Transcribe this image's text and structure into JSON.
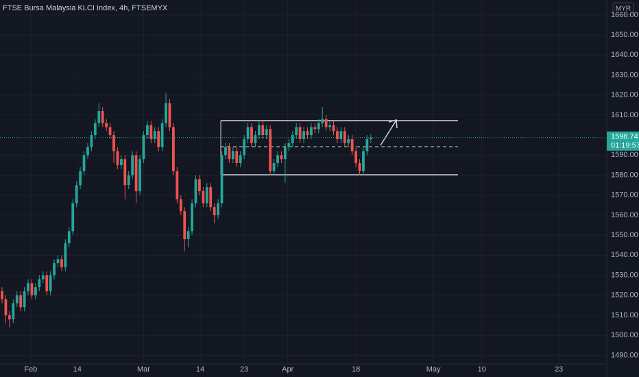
{
  "chart_data": {
    "type": "candlestick",
    "title": "FTSE Bursa Malaysia KLCI Index, 4h, FTSEMYX",
    "currency": "MYR",
    "up_color": "#26a69a",
    "down_color": "#ef5350",
    "open": [
      1522,
      1518,
      1510,
      1508,
      1516,
      1520,
      1514,
      1522,
      1526,
      1520,
      1524,
      1528,
      1530,
      1522,
      1530,
      1536,
      1538,
      1534,
      1546,
      1552,
      1566,
      1575,
      1582,
      1590,
      1594,
      1600,
      1606,
      1612,
      1606,
      1604,
      1600,
      1592,
      1585,
      1588,
      1575,
      1580,
      1590,
      1572,
      1588,
      1600,
      1605,
      1598,
      1602,
      1594,
      1606,
      1616,
      1604,
      1582,
      1568,
      1562,
      1548,
      1552,
      1566,
      1578,
      1572,
      1566,
      1574,
      1564,
      1560,
      1566,
      1590,
      1594,
      1588,
      1592,
      1586,
      1590,
      1598,
      1604,
      1596,
      1600,
      1605,
      1600,
      1603,
      1582,
      1586,
      1590,
      1588,
      1594,
      1596,
      1600,
      1604,
      1598,
      1602,
      1600,
      1604,
      1603,
      1606,
      1608,
      1604,
      1605,
      1602,
      1598,
      1602,
      1596,
      1598,
      1592,
      1586,
      1582,
      1592,
      1598
    ],
    "high": [
      1524,
      1520,
      1512,
      1518,
      1522,
      1522,
      1524,
      1528,
      1528,
      1526,
      1530,
      1532,
      1532,
      1532,
      1538,
      1540,
      1540,
      1548,
      1554,
      1568,
      1577,
      1584,
      1592,
      1596,
      1602,
      1608,
      1616,
      1614,
      1608,
      1606,
      1602,
      1594,
      1590,
      1590,
      1582,
      1592,
      1592,
      1590,
      1602,
      1607,
      1607,
      1604,
      1604,
      1608,
      1621,
      1618,
      1606,
      1584,
      1570,
      1564,
      1554,
      1568,
      1580,
      1580,
      1574,
      1576,
      1576,
      1566,
      1568,
      1592,
      1596,
      1596,
      1594,
      1594,
      1592,
      1600,
      1606,
      1606,
      1602,
      1607,
      1607,
      1605,
      1605,
      1588,
      1592,
      1592,
      1596,
      1598,
      1602,
      1606,
      1606,
      1604,
      1604,
      1606,
      1606,
      1608,
      1614,
      1610,
      1607,
      1607,
      1604,
      1604,
      1604,
      1600,
      1600,
      1594,
      1588,
      1594,
      1600,
      1600.5
    ],
    "low": [
      1516,
      1506,
      1504,
      1506,
      1514,
      1512,
      1512,
      1520,
      1518,
      1518,
      1522,
      1526,
      1520,
      1520,
      1528,
      1534,
      1532,
      1532,
      1544,
      1550,
      1564,
      1573,
      1580,
      1588,
      1592,
      1598,
      1604,
      1604,
      1602,
      1598,
      1586,
      1583,
      1583,
      1568,
      1573,
      1578,
      1566,
      1570,
      1586,
      1598,
      1596,
      1596,
      1592,
      1592,
      1604,
      1602,
      1580,
      1566,
      1560,
      1542,
      1544,
      1550,
      1564,
      1570,
      1564,
      1564,
      1562,
      1556,
      1558,
      1564,
      1588,
      1586,
      1586,
      1584,
      1584,
      1588,
      1596,
      1594,
      1594,
      1598,
      1598,
      1598,
      1580,
      1580,
      1584,
      1586,
      1576,
      1592,
      1594,
      1598,
      1596,
      1596,
      1598,
      1598,
      1601,
      1601,
      1604,
      1602,
      1602,
      1600,
      1596,
      1596,
      1594,
      1594,
      1590,
      1584,
      1580,
      1580,
      1590,
      1596
    ],
    "close": [
      1518,
      1510,
      1508,
      1516,
      1520,
      1514,
      1522,
      1526,
      1520,
      1524,
      1528,
      1530,
      1522,
      1530,
      1536,
      1538,
      1534,
      1546,
      1552,
      1566,
      1575,
      1582,
      1590,
      1594,
      1600,
      1606,
      1612,
      1606,
      1604,
      1600,
      1592,
      1585,
      1588,
      1575,
      1580,
      1590,
      1572,
      1588,
      1600,
      1605,
      1598,
      1602,
      1594,
      1606,
      1616,
      1604,
      1582,
      1568,
      1562,
      1548,
      1552,
      1566,
      1578,
      1572,
      1566,
      1574,
      1564,
      1560,
      1566,
      1590,
      1594,
      1588,
      1592,
      1586,
      1590,
      1598,
      1604,
      1596,
      1600,
      1605,
      1600,
      1603,
      1582,
      1586,
      1590,
      1588,
      1594,
      1596,
      1600,
      1604,
      1598,
      1602,
      1600,
      1604,
      1603,
      1606,
      1608,
      1604,
      1605,
      1602,
      1598,
      1602,
      1596,
      1598,
      1592,
      1586,
      1582,
      1592,
      1598,
      1598.74
    ],
    "last_price": {
      "value": 1598.74,
      "label": "1598.74"
    },
    "countdown": "01:19:57",
    "xlim": [
      -0.55,
      161.8
    ],
    "xticks": [
      {
        "value": 7.7,
        "label": "Feb"
      },
      {
        "value": 20.2,
        "label": "14"
      },
      {
        "value": 38,
        "label": "Mar"
      },
      {
        "value": 53.2,
        "label": "14"
      },
      {
        "value": 65,
        "label": "23"
      },
      {
        "value": 76.7,
        "label": "Apr"
      },
      {
        "value": 95,
        "label": "18"
      },
      {
        "value": 115.8,
        "label": "May"
      },
      {
        "value": 128.8,
        "label": "10"
      },
      {
        "value": 149.5,
        "label": "23"
      }
    ],
    "ylim": [
      1485.5,
      1667.5
    ],
    "yticks": [
      {
        "value": 1490,
        "label": "1490.00"
      },
      {
        "value": 1500,
        "label": "1500.00"
      },
      {
        "value": 1510,
        "label": "1510.00"
      },
      {
        "value": 1520,
        "label": "1520.00"
      },
      {
        "value": 1530,
        "label": "1530.00"
      },
      {
        "value": 1540,
        "label": "1540.00"
      },
      {
        "value": 1550,
        "label": "1550.00"
      },
      {
        "value": 1560,
        "label": "1560.00"
      },
      {
        "value": 1570,
        "label": "1570.00"
      },
      {
        "value": 1580,
        "label": "1580.00"
      },
      {
        "value": 1590,
        "label": "1590.00"
      },
      {
        "value": 1610,
        "label": "1610.00"
      },
      {
        "value": 1620,
        "label": "1620.00"
      },
      {
        "value": 1630,
        "label": "1630.00"
      },
      {
        "value": 1640,
        "label": "1640.00"
      },
      {
        "value": 1650,
        "label": "1650.00"
      },
      {
        "value": 1660,
        "label": "1660.00"
      }
    ]
  }
}
